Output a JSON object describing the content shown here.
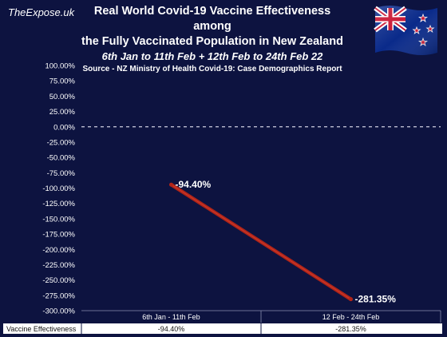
{
  "site_name": "TheExpose.uk",
  "title_line1": "Real World Covid-19 Vaccine Effectiveness among",
  "title_line2": "the Fully Vaccinated Population in New Zealand",
  "subtitle": "6th Jan to 11th Feb + 12th Feb to 24th Feb 22",
  "source": "Source - NZ Ministry of Health Covid-19: Case Demographics Report",
  "flag_icon": "new-zealand-flag-icon",
  "colors": {
    "background": "#0d1340",
    "line": "#b02418",
    "text": "#ffffff",
    "zero_line": "#cfcfe0"
  },
  "chart_data": {
    "type": "line",
    "categories": [
      "6th Jan - 11th Feb",
      "12 Feb - 24th Feb"
    ],
    "series": [
      {
        "name": "Vaccine Effectiveness",
        "values": [
          -94.4,
          -281.35
        ],
        "labels": [
          "-94.40%",
          "-281.35%"
        ]
      }
    ],
    "ylim": [
      -300,
      100
    ],
    "y_ticks": [
      "100.00%",
      "75.00%",
      "50.00%",
      "25.00%",
      "0.00%",
      "-25.00%",
      "-50.00%",
      "-75.00%",
      "-100.00%",
      "-125.00%",
      "-150.00%",
      "-175.00%",
      "-200.00%",
      "-225.00%",
      "-250.00%",
      "-275.00%",
      "-300.00%"
    ],
    "y_tick_values": [
      100,
      75,
      50,
      25,
      0,
      -25,
      -50,
      -75,
      -100,
      -125,
      -150,
      -175,
      -200,
      -225,
      -250,
      -275,
      -300
    ],
    "table": {
      "row_label": "Vaccine Effectiveness",
      "cells": [
        "-94.40%",
        "-281.35%"
      ]
    },
    "grid": false,
    "legend": "none"
  }
}
